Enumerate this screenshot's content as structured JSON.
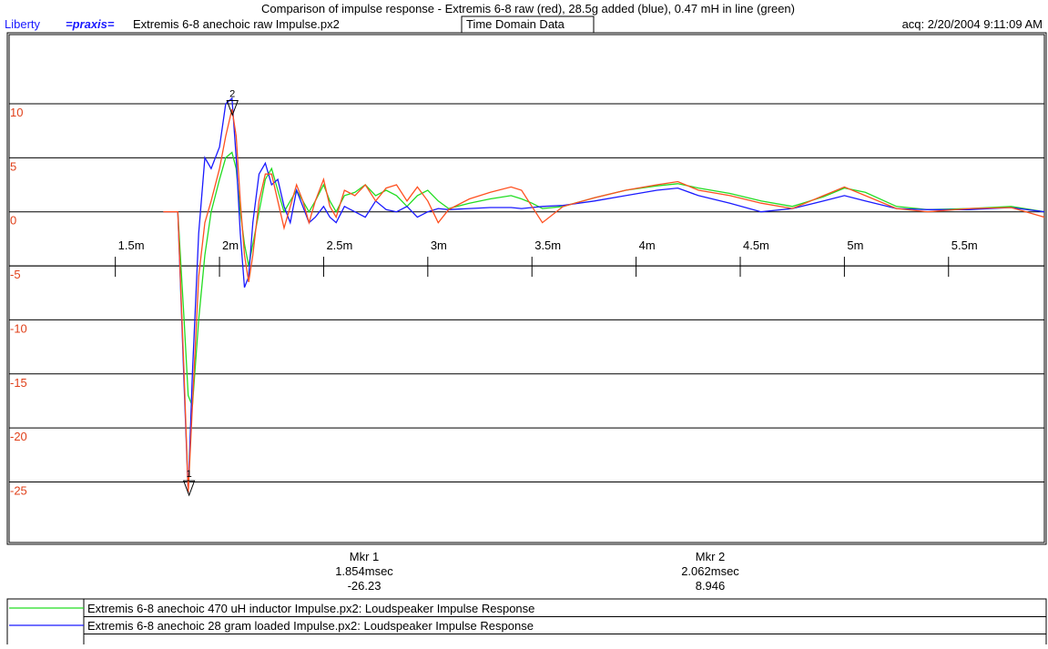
{
  "header": {
    "app": "Liberty",
    "brand": "=praxis=",
    "file": "Extremis 6-8 anechoic raw Impulse.px2",
    "mode": "Time Domain Data",
    "acq": "acq: 2/20/2004 9:11:09 AM"
  },
  "chart_data": {
    "type": "line",
    "title": "Comparison of impulse response - Extremis 6-8 raw (red), 28.5g added (blue), 0.47 mH in line (green)",
    "x": [
      1.73,
      1.8,
      1.83,
      1.85,
      1.87,
      1.9,
      1.93,
      1.96,
      2.0,
      2.03,
      2.06,
      2.08,
      2.1,
      2.12,
      2.14,
      2.16,
      2.19,
      2.22,
      2.25,
      2.28,
      2.31,
      2.34,
      2.37,
      2.4,
      2.43,
      2.46,
      2.5,
      2.53,
      2.56,
      2.6,
      2.65,
      2.7,
      2.75,
      2.8,
      2.85,
      2.9,
      2.95,
      3.0,
      3.05,
      3.1,
      3.2,
      3.3,
      3.4,
      3.45,
      3.5,
      3.55,
      3.65,
      3.8,
      3.95,
      4.1,
      4.2,
      4.3,
      4.45,
      4.6,
      4.75,
      4.9,
      5.0,
      5.1,
      5.25,
      5.4,
      5.6,
      5.8,
      5.96
    ],
    "series": [
      {
        "name": "Extremis 6-8 anechoic 470 uH inductor Impulse.px2:  Loudspeaker Impulse Response",
        "color": "#22dd22",
        "values": [
          0,
          0,
          -10,
          -17,
          -18,
          -10,
          -4,
          0,
          3,
          5,
          5.5,
          4,
          0,
          -3,
          -5,
          -3,
          0,
          3,
          4,
          2,
          0,
          1,
          2,
          1,
          0,
          1,
          2.5,
          1,
          0,
          1.5,
          1.8,
          2.5,
          1.5,
          2,
          1.5,
          0.5,
          1.5,
          2,
          1,
          0.3,
          0.8,
          1.2,
          1.5,
          1.2,
          0.8,
          0.3,
          0.5,
          1.3,
          2,
          2.4,
          2.6,
          2.2,
          1.7,
          1,
          0.5,
          1.4,
          2.2,
          1.8,
          0.5,
          0.2,
          0.3,
          0.5,
          0
        ]
      },
      {
        "name": "Extremis 6-8 anechoic 28 gram loaded Impulse.px2:  Loudspeaker Impulse Response",
        "color": "#1a1aff",
        "values": [
          0,
          0,
          -16,
          -26,
          -15,
          -2,
          5,
          4,
          6,
          10,
          10.5,
          5,
          -2,
          -7,
          -6,
          -1,
          3.5,
          4.5,
          2.5,
          3,
          0.5,
          -1,
          2,
          0.5,
          -1,
          -0.5,
          0.5,
          -0.5,
          -1,
          0.5,
          0,
          -0.5,
          1,
          0.2,
          0,
          0.5,
          -0.5,
          0,
          0.3,
          0.2,
          0.3,
          0.4,
          0.4,
          0.3,
          0.4,
          0.5,
          0.6,
          1,
          1.5,
          2,
          2.2,
          1.5,
          0.8,
          0,
          0.3,
          1,
          1.5,
          1,
          0.3,
          0.2,
          0.2,
          0.4,
          0
        ]
      },
      {
        "color": "#ff5020",
        "values": [
          0,
          0,
          -15,
          -26,
          -18,
          -6,
          -1,
          1,
          4,
          7,
          9.5,
          7,
          1,
          -4,
          -6.5,
          -4,
          1,
          3.5,
          3.5,
          1,
          -1.5,
          0.5,
          2.5,
          1,
          -1,
          1,
          3,
          0.5,
          -0.5,
          2,
          1.5,
          2.5,
          1,
          2.2,
          2.5,
          1,
          2.3,
          1,
          -1,
          0.2,
          1.2,
          1.8,
          2.3,
          2,
          0.5,
          -1,
          0.5,
          1.3,
          2,
          2.5,
          2.8,
          2,
          1.5,
          0.8,
          0.3,
          1.5,
          2.3,
          1.5,
          0.3,
          0,
          0.3,
          0.4,
          -0.5
        ]
      }
    ],
    "xlim": [
      0.99,
      5.96
    ],
    "xticks": [
      {
        "value": 1.5,
        "label": "1.5m"
      },
      {
        "value": 2,
        "label": "2m"
      },
      {
        "value": 2.5,
        "label": "2.5m"
      },
      {
        "value": 3,
        "label": "3m"
      },
      {
        "value": 3.5,
        "label": "3.5m"
      },
      {
        "value": 4,
        "label": "4m"
      },
      {
        "value": 4.5,
        "label": "4.5m"
      },
      {
        "value": 5,
        "label": "5m"
      },
      {
        "value": 5.5,
        "label": "5.5m"
      }
    ],
    "ylim": [
      -30.6,
      16.4
    ],
    "yticks": [
      10,
      5,
      0,
      -5,
      -10,
      -15,
      -20,
      -25
    ],
    "x_axis_at": -5,
    "grid": true,
    "markers": [
      {
        "label": "Mkr 1",
        "number": "1",
        "x": 1.854,
        "x_label": "1.854msec",
        "y": -26.23
      },
      {
        "label": "Mkr 2",
        "number": "2",
        "x": 2.062,
        "x_label": "2.062msec",
        "y": 8.946
      }
    ]
  }
}
